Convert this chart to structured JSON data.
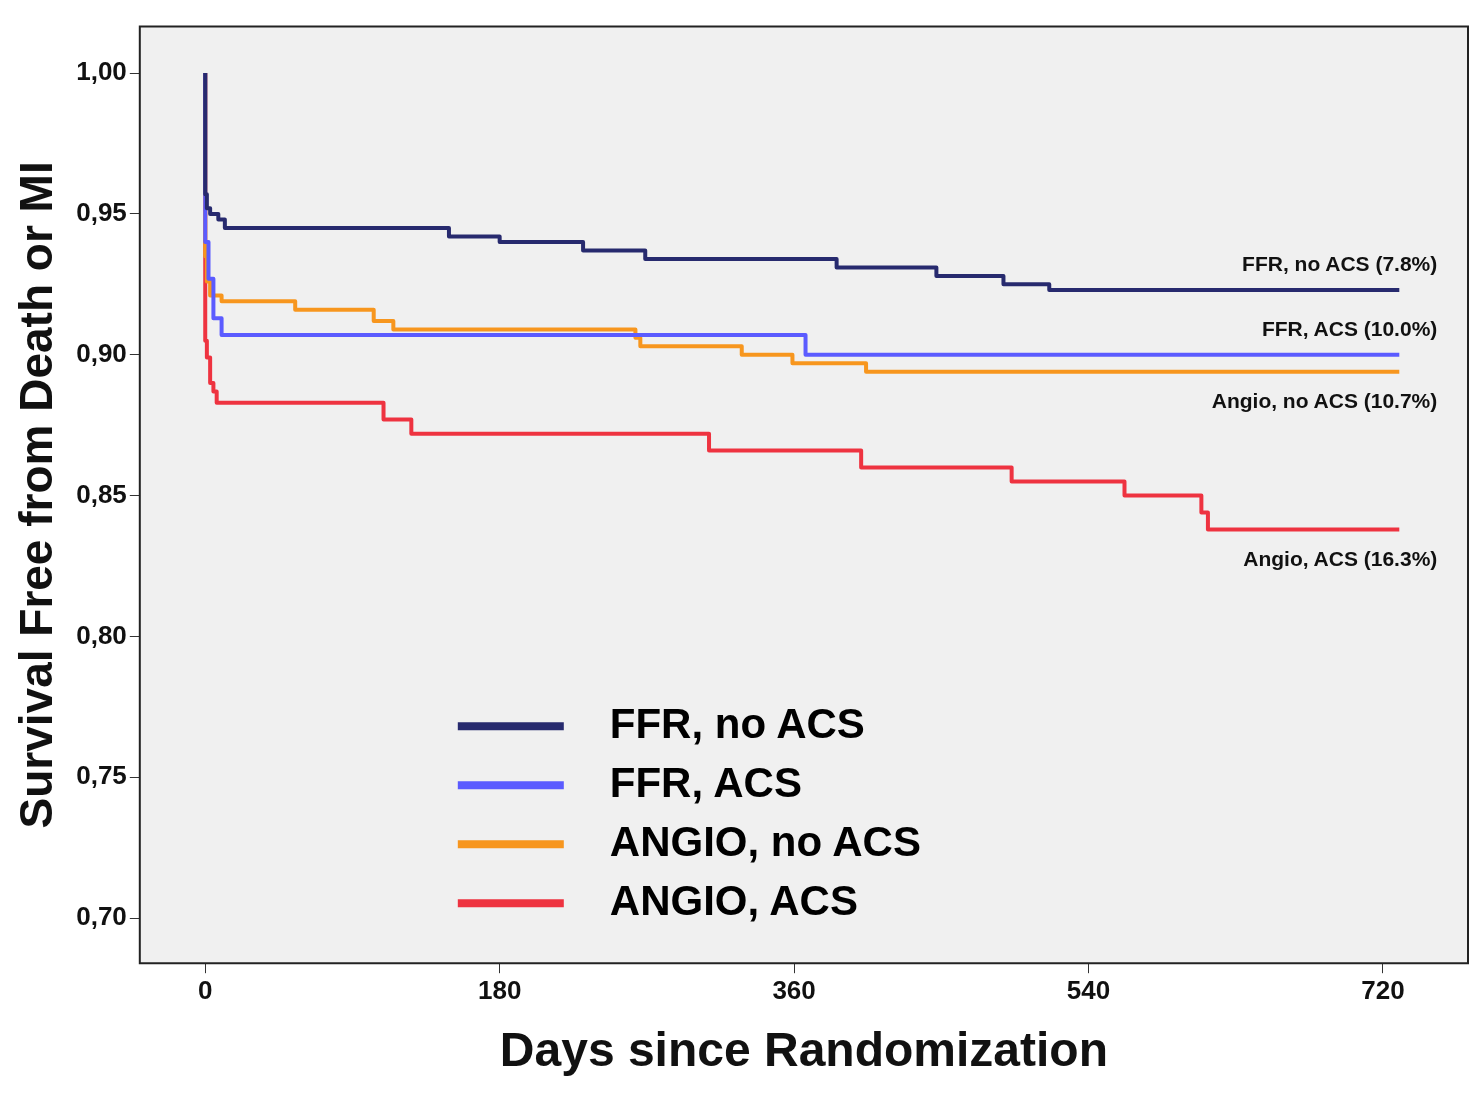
{
  "chart_data": {
    "type": "step",
    "xlabel": "Days since Randomization",
    "ylabel": "Survival Free from Death or MI",
    "xlim": [
      -40,
      772
    ],
    "ylim": [
      0.684,
      1.0165
    ],
    "xticks": [
      0,
      180,
      360,
      540,
      720
    ],
    "yticks": [
      {
        "value": 0.7,
        "label": "0,70"
      },
      {
        "value": 0.75,
        "label": "0,75"
      },
      {
        "value": 0.8,
        "label": "0,80"
      },
      {
        "value": 0.85,
        "label": "0,85"
      },
      {
        "value": 0.9,
        "label": "0,90"
      },
      {
        "value": 0.95,
        "label": "0,95"
      },
      {
        "value": 1.0,
        "label": "1,00"
      }
    ],
    "grid": false,
    "legend": "bottom",
    "line_style": "solid",
    "marker": "none",
    "series": [
      {
        "name": "FFR, no ACS",
        "color": "#272a6e",
        "x": [
          0,
          1,
          3,
          8,
          12,
          149,
          180,
          231,
          269,
          386,
          447,
          488,
          516,
          596,
          730
        ],
        "values": [
          1.0,
          0.957,
          0.952,
          0.95,
          0.948,
          0.945,
          0.942,
          0.94,
          0.937,
          0.934,
          0.931,
          0.928,
          0.925,
          0.923,
          0.923
        ]
      },
      {
        "name": "FFR, ACS",
        "color": "#5b5bff",
        "x": [
          0,
          2,
          5,
          10,
          367,
          644,
          730
        ],
        "values": [
          1.0,
          0.94,
          0.927,
          0.913,
          0.907,
          0.9,
          0.9
        ]
      },
      {
        "name": "ANGIO, no ACS",
        "color": "#f7961e",
        "x": [
          0,
          1,
          3,
          10,
          55,
          103,
          115,
          263,
          266,
          328,
          359,
          404,
          474,
          730
        ],
        "values": [
          1.0,
          0.935,
          0.926,
          0.921,
          0.919,
          0.916,
          0.912,
          0.909,
          0.906,
          0.903,
          0.9,
          0.897,
          0.894,
          0.894
        ]
      },
      {
        "name": "ANGIO, ACS",
        "color": "#ee3340",
        "x": [
          0,
          1,
          3,
          5,
          7,
          109,
          126,
          308,
          401,
          493,
          562,
          609,
          613,
          630,
          730
        ],
        "values": [
          1.0,
          0.905,
          0.899,
          0.89,
          0.887,
          0.883,
          0.877,
          0.872,
          0.866,
          0.86,
          0.855,
          0.85,
          0.844,
          0.838,
          0.838
        ]
      }
    ],
    "annotations": [
      "FFR, no ACS (7.8%)",
      "FFR, ACS (10.0%)",
      "Angio, no ACS (10.7%)",
      "Angio, ACS (16.3%)"
    ]
  }
}
